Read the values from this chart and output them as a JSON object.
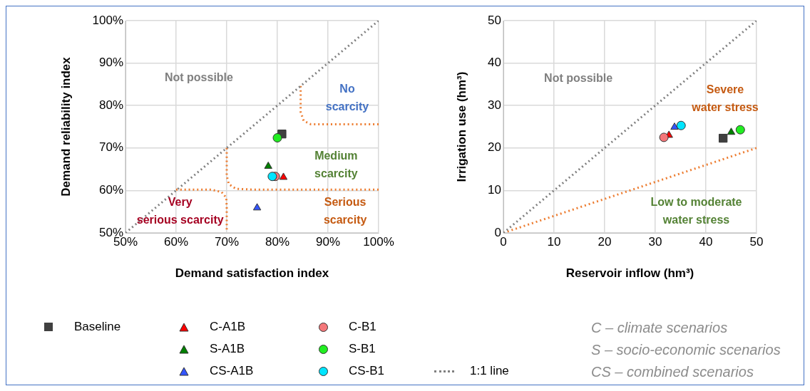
{
  "chart_data": [
    {
      "type": "scatter",
      "xlabel": "Demand satisfaction index",
      "ylabel": "Demand reliability index",
      "xlim": [
        50,
        100
      ],
      "ylim": [
        50,
        100
      ],
      "xticks": [
        {
          "value": 50,
          "label": "50%"
        },
        {
          "value": 60,
          "label": "60%"
        },
        {
          "value": 70,
          "label": "70%"
        },
        {
          "value": 80,
          "label": "80%"
        },
        {
          "value": 90,
          "label": "90%"
        },
        {
          "value": 100,
          "label": "100%"
        }
      ],
      "yticks": [
        {
          "value": 50,
          "label": "50%"
        },
        {
          "value": 60,
          "label": "60%"
        },
        {
          "value": 70,
          "label": "70%"
        },
        {
          "value": 80,
          "label": "80%"
        },
        {
          "value": 90,
          "label": "90%"
        },
        {
          "value": 100,
          "label": "100%"
        }
      ],
      "grid": true,
      "legend": "bottom",
      "series": [
        {
          "name": "Baseline",
          "type": "scatter",
          "marker": "square",
          "color": "#404040",
          "x": [
            80.9
          ],
          "values": [
            73.3
          ]
        },
        {
          "name": "C-A1B",
          "type": "scatter",
          "marker": "triangle",
          "color": "#ff0000",
          "x": [
            81.2
          ],
          "values": [
            63.1
          ]
        },
        {
          "name": "S-A1B",
          "type": "scatter",
          "marker": "triangle",
          "color": "#008000",
          "x": [
            78.2
          ],
          "values": [
            65.7
          ]
        },
        {
          "name": "CS-A1B",
          "type": "scatter",
          "marker": "triangle",
          "color": "#3355ff",
          "x": [
            76.0
          ],
          "values": [
            55.9
          ]
        },
        {
          "name": "C-B1",
          "type": "scatter",
          "marker": "circle",
          "color": "#f4777a",
          "x": [
            79.6
          ],
          "values": [
            63.3
          ]
        },
        {
          "name": "S-B1",
          "type": "scatter",
          "marker": "circle",
          "color": "#22ee22",
          "x": [
            80.0
          ],
          "values": [
            72.4
          ]
        },
        {
          "name": "CS-B1",
          "type": "scatter",
          "marker": "circle",
          "color": "#00e5ff",
          "x": [
            79.0
          ],
          "values": [
            63.3
          ]
        },
        {
          "name": "1:1 line",
          "type": "line",
          "marker": "none",
          "line_style": "dotted",
          "color": "#808080",
          "x": [
            50,
            100
          ],
          "values": [
            50,
            100
          ]
        },
        {
          "type": "line",
          "marker": "none",
          "line_style": "dotted",
          "color": "#ed7d31",
          "x": [
            60,
            67,
            69,
            69.9,
            70,
            70
          ],
          "values": [
            60.2,
            60.2,
            59.6,
            58.3,
            56,
            50.8
          ]
        },
        {
          "type": "line",
          "marker": "none",
          "line_style": "dotted",
          "color": "#ed7d31",
          "x": [
            70,
            70,
            70.4,
            71.8,
            75,
            100
          ],
          "values": [
            70,
            63.5,
            61.5,
            60.4,
            60.2,
            60.2
          ]
        },
        {
          "type": "line",
          "marker": "none",
          "line_style": "dotted",
          "color": "#ed7d31",
          "x": [
            84.6,
            84.6,
            85.2,
            86.6,
            100
          ],
          "values": [
            84.6,
            78.5,
            76.4,
            75.6,
            75.6
          ]
        }
      ],
      "annotations": [
        "Not possible",
        "No\nscarcity",
        "Medium\nscarcity",
        "Serious\nscarcity",
        "Very\nserious scarcity",
        "C – climate scenarios",
        "S – socio-economic scenarios",
        "CS – combined scenarios"
      ]
    },
    {
      "type": "scatter",
      "xlabel": "Reservoir inflow (hm³)",
      "ylabel": "Irrigation use (hm³)",
      "xlim": [
        0,
        50
      ],
      "ylim": [
        0,
        50
      ],
      "xticks": [
        0,
        10,
        20,
        30,
        40,
        50
      ],
      "yticks": [
        0,
        10,
        20,
        30,
        40,
        50
      ],
      "grid": true,
      "series": [
        {
          "type": "scatter",
          "marker": "square",
          "color": "#404040",
          "x": [
            43.4
          ],
          "values": [
            22.3
          ]
        },
        {
          "type": "scatter",
          "marker": "triangle",
          "color": "#ff0000",
          "x": [
            32.7
          ],
          "values": [
            23.0
          ]
        },
        {
          "type": "scatter",
          "marker": "triangle",
          "color": "#008000",
          "x": [
            45.0
          ],
          "values": [
            23.7
          ]
        },
        {
          "type": "scatter",
          "marker": "triangle",
          "color": "#3355ff",
          "x": [
            33.8
          ],
          "values": [
            24.9
          ]
        },
        {
          "type": "scatter",
          "marker": "circle",
          "color": "#f4777a",
          "x": [
            31.7
          ],
          "values": [
            22.5
          ]
        },
        {
          "type": "scatter",
          "marker": "circle",
          "color": "#22ee22",
          "x": [
            46.8
          ],
          "values": [
            24.3
          ]
        },
        {
          "type": "scatter",
          "marker": "circle",
          "color": "#00e5ff",
          "x": [
            35.1
          ],
          "values": [
            25.3
          ]
        },
        {
          "type": "line",
          "marker": "none",
          "line_style": "dotted",
          "color": "#808080",
          "x": [
            0,
            50
          ],
          "values": [
            0,
            50
          ]
        },
        {
          "type": "line",
          "marker": "none",
          "line_style": "dotted",
          "color": "#ed7d31",
          "x": [
            0,
            50
          ],
          "values": [
            0,
            20
          ]
        }
      ],
      "annotations": [
        "Not possible",
        "Severe\nwater stress",
        "Low to moderate\nwater stress"
      ]
    }
  ]
}
